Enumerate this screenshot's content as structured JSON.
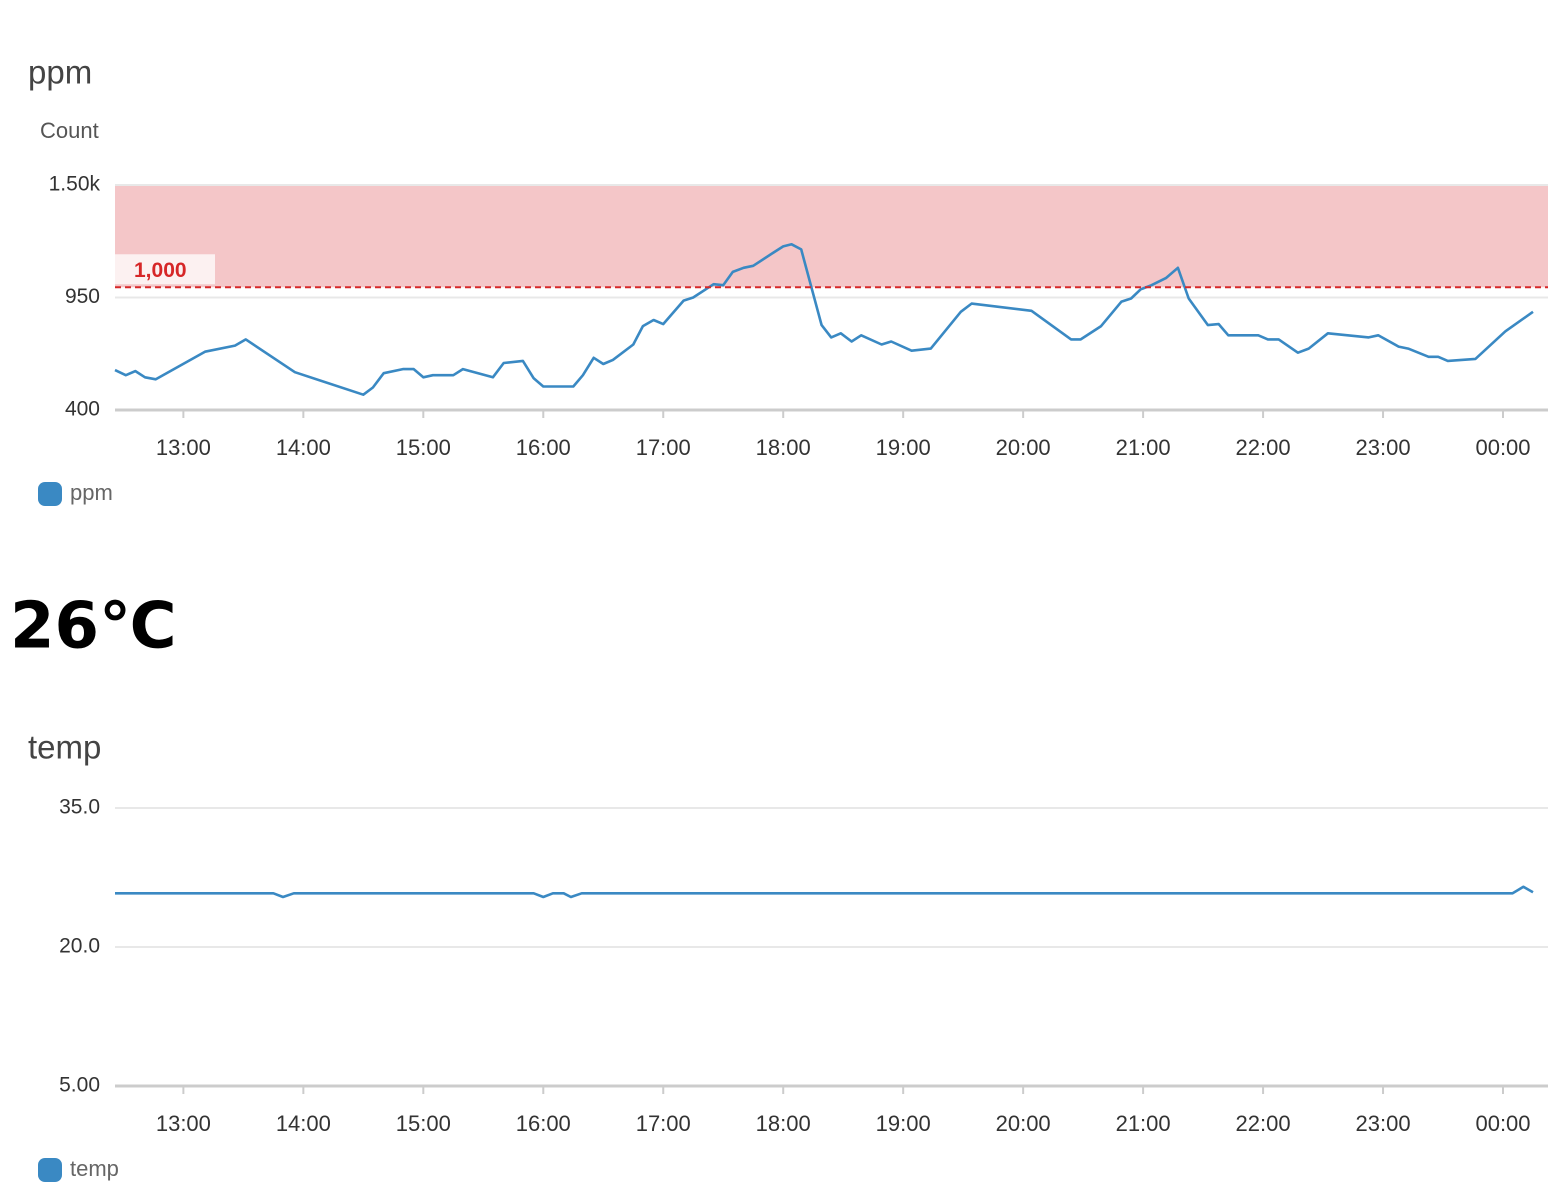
{
  "chart_data": [
    {
      "type": "line",
      "title": "ppm",
      "ylabel": "Count",
      "x": [
        12.43,
        12.52,
        12.6,
        12.68,
        12.77,
        13.18,
        13.43,
        13.52,
        13.93,
        14.5,
        14.58,
        14.67,
        14.83,
        14.92,
        15.0,
        15.08,
        15.25,
        15.33,
        15.58,
        15.67,
        15.83,
        15.92,
        16.0,
        16.25,
        16.33,
        16.42,
        16.5,
        16.58,
        16.75,
        16.83,
        16.92,
        17.0,
        17.17,
        17.25,
        17.42,
        17.5,
        17.58,
        17.67,
        17.75,
        17.92,
        18.0,
        18.07,
        18.15,
        18.32,
        18.4,
        18.48,
        18.57,
        18.65,
        18.82,
        18.9,
        19.07,
        19.23,
        19.48,
        19.57,
        20.07,
        20.4,
        20.48,
        20.65,
        20.82,
        20.9,
        20.98,
        21.07,
        21.19,
        21.29,
        21.38,
        21.54,
        21.63,
        21.71,
        21.96,
        22.04,
        22.13,
        22.29,
        22.38,
        22.54,
        22.88,
        22.96,
        23.13,
        23.21,
        23.38,
        23.46,
        23.54,
        23.77,
        24.02,
        24.25
      ],
      "series": [
        {
          "name": "ppm",
          "color": "#3a89c3",
          "values": [
            595,
            570,
            590,
            560,
            550,
            685,
            715,
            745,
            585,
            475,
            510,
            580,
            600,
            600,
            560,
            570,
            570,
            600,
            560,
            630,
            640,
            555,
            515,
            515,
            570,
            655,
            625,
            645,
            720,
            810,
            840,
            820,
            935,
            950,
            1015,
            1010,
            1075,
            1095,
            1105,
            1170,
            1200,
            1210,
            1185,
            815,
            755,
            775,
            735,
            765,
            720,
            735,
            690,
            700,
            880,
            920,
            885,
            745,
            745,
            810,
            930,
            945,
            990,
            1010,
            1045,
            1095,
            945,
            815,
            820,
            765,
            765,
            745,
            745,
            680,
            700,
            775,
            755,
            765,
            710,
            700,
            660,
            660,
            640,
            650,
            785,
            880
          ]
        }
      ],
      "xlim": [
        12.43,
        24.375
      ],
      "xticks": [
        {
          "value": 13,
          "label": "13:00"
        },
        {
          "value": 14,
          "label": "14:00"
        },
        {
          "value": 15,
          "label": "15:00"
        },
        {
          "value": 16,
          "label": "16:00"
        },
        {
          "value": 17,
          "label": "17:00"
        },
        {
          "value": 18,
          "label": "18:00"
        },
        {
          "value": 19,
          "label": "19:00"
        },
        {
          "value": 20,
          "label": "20:00"
        },
        {
          "value": 21,
          "label": "21:00"
        },
        {
          "value": 22,
          "label": "22:00"
        },
        {
          "value": 23,
          "label": "23:00"
        },
        {
          "value": 24,
          "label": "00:00"
        }
      ],
      "ylim": [
        400,
        1500
      ],
      "yticks": [
        400,
        950,
        {
          "value": 1500,
          "label": "1.50k"
        }
      ],
      "threshold": {
        "value": 1000,
        "label": "1,000",
        "color": "#d62728"
      },
      "grid": true
    },
    {
      "type": "line",
      "title": "temp",
      "x": [
        12.43,
        13.75,
        13.83,
        13.92,
        15.92,
        16.0,
        16.08,
        16.17,
        16.23,
        16.32,
        24.08,
        24.17,
        24.25
      ],
      "series": [
        {
          "name": "temp",
          "color": "#3a89c3",
          "values": [
            25.8,
            25.8,
            25.4,
            25.8,
            25.8,
            25.4,
            25.8,
            25.8,
            25.4,
            25.8,
            25.8,
            26.5,
            25.9
          ]
        }
      ],
      "xlim": [
        12.43,
        24.375
      ],
      "xticks": [
        {
          "value": 13,
          "label": "13:00"
        },
        {
          "value": 14,
          "label": "14:00"
        },
        {
          "value": 15,
          "label": "15:00"
        },
        {
          "value": 16,
          "label": "16:00"
        },
        {
          "value": 17,
          "label": "17:00"
        },
        {
          "value": 18,
          "label": "18:00"
        },
        {
          "value": 19,
          "label": "19:00"
        },
        {
          "value": 20,
          "label": "20:00"
        },
        {
          "value": 21,
          "label": "21:00"
        },
        {
          "value": 22,
          "label": "22:00"
        },
        {
          "value": 23,
          "label": "23:00"
        },
        {
          "value": 24,
          "label": "00:00"
        }
      ],
      "ylim": [
        5,
        35
      ],
      "yticks": [
        {
          "value": 5,
          "label": "5.00"
        },
        {
          "value": 20,
          "label": "20.0"
        },
        {
          "value": 35,
          "label": "35.0"
        }
      ],
      "grid": true
    }
  ],
  "reading": "26℃"
}
